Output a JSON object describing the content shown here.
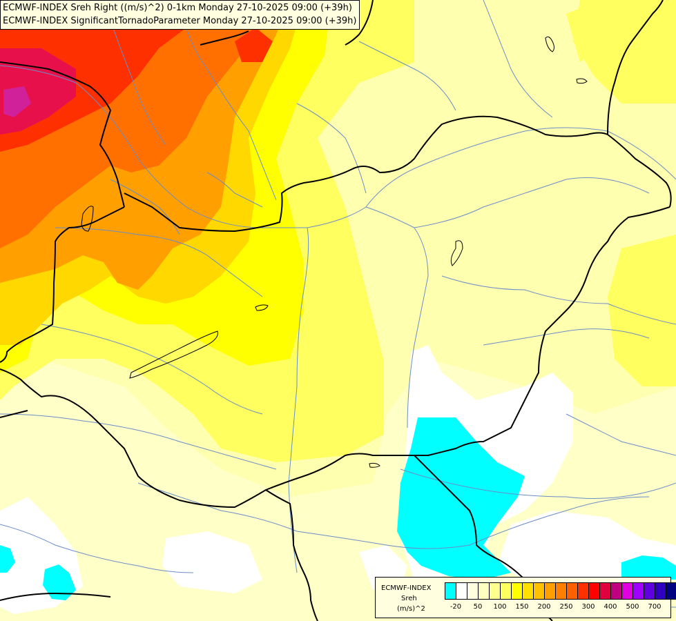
{
  "title_lines": [
    "ECMWF-INDEX Sreh Right ((m/s)^2) 0-1km Monday 27-10-2025 09:00 (+39h)",
    "ECMWF-INDEX SignificantTornadoParameter Monday 27-10-2025 09:00 (+39h)"
  ],
  "legend": {
    "title": "ECMWF-INDEX",
    "variable": "Sreh",
    "unit": "(m/s)^2",
    "tick_labels": [
      "-20",
      "50",
      "100",
      "150",
      "200",
      "250",
      "300",
      "400",
      "500",
      "700"
    ],
    "colors": [
      "#00ffff",
      "#ffffff",
      "#ffffe0",
      "#ffffc0",
      "#ffff90",
      "#ffff60",
      "#ffff00",
      "#ffe000",
      "#ffc000",
      "#ffa000",
      "#ff8000",
      "#ff6000",
      "#ff3000",
      "#ff0000",
      "#e00040",
      "#c00080",
      "#e000e0",
      "#a000ff",
      "#6000e0",
      "#3000c0",
      "#000080"
    ]
  },
  "map_colors": {
    "background": "#ffffc8",
    "cyan": "#00ffff",
    "white": "#ffffff",
    "light_yellow": "#ffffb0",
    "yellow": "#ffff60",
    "bright_yellow": "#ffff00",
    "gold": "#ffd800",
    "orange": "#ffa000",
    "dark_orange": "#ff7000",
    "red": "#ff3000",
    "crimson": "#e8104a",
    "magenta": "#d0209a",
    "border": "#000000",
    "river": "#6a8cc8"
  }
}
